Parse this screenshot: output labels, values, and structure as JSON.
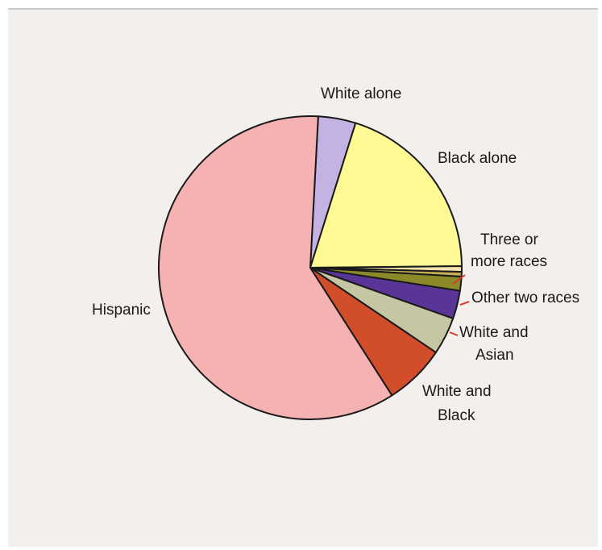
{
  "chart_data": {
    "type": "pie",
    "slices": [
      {
        "label": "White alone",
        "lines": [
          "White alone"
        ],
        "value": 4.0,
        "color": "#c3b2e2"
      },
      {
        "label": "Black alone",
        "lines": [
          "Black alone"
        ],
        "value": 20.0,
        "color": "#fef993"
      },
      {
        "label": "Three or more races",
        "lines": [
          "Three or",
          "more races"
        ],
        "value": 0.6,
        "color": "#f5e2a8"
      },
      {
        "label": "Three or more races (2)",
        "lines": [],
        "value": 0.5,
        "color": "#c2ad55"
      },
      {
        "label": "Three or more races (3)",
        "lines": [],
        "value": 1.5,
        "color": "#8a8a2a"
      },
      {
        "label": "Other two races",
        "lines": [
          "Other two races"
        ],
        "value": 3.0,
        "color": "#583597"
      },
      {
        "label": "White and Asian",
        "lines": [
          "White and",
          "Asian"
        ],
        "value": 4.0,
        "color": "#c7c6a4"
      },
      {
        "label": "White and Black",
        "lines": [
          "White and",
          "Black"
        ],
        "value": 6.5,
        "color": "#d24e2b"
      },
      {
        "label": "Hispanic",
        "lines": [
          "Hispanic"
        ],
        "value": 59.9,
        "color": "#f6b2b2"
      }
    ]
  }
}
